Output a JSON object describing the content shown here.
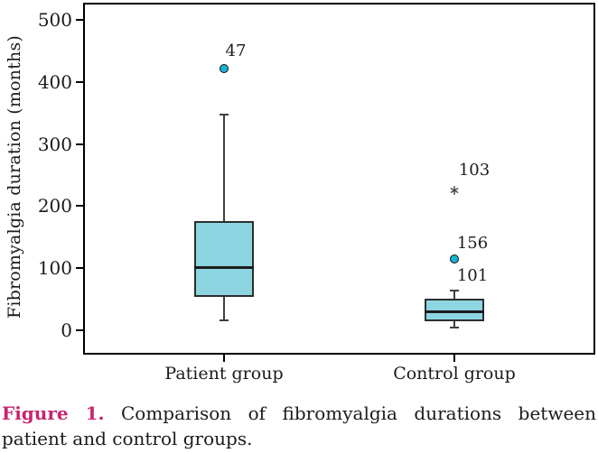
{
  "figure": {
    "caption": {
      "label": "Figure 1.",
      "line1": "Comparison of fibromyalgia durations between",
      "line2": "patient and control groups."
    }
  },
  "colors": {
    "box_fill": "#8ed5e2",
    "box_border": "#2e2e2e",
    "marker_fill": "#17b3d3",
    "asterisk": "#4a4a4a",
    "caption_accent": "#c8246f",
    "text": "#1b1b1b"
  },
  "chart_data": {
    "type": "boxplot",
    "title": "",
    "xlabel": "",
    "ylabel": "Fibromyalgia duration (months)",
    "ylim": [
      0,
      500
    ],
    "yticks": [
      0,
      100,
      200,
      300,
      400,
      500
    ],
    "grid": false,
    "groups": [
      {
        "label": "Patient group",
        "whisker_low": 16,
        "q1": 54,
        "median": 102,
        "q3": 176,
        "whisker_high": 347,
        "outliers": [
          {
            "case": "47",
            "value": 421,
            "symbol": "circle",
            "label_dx": 13,
            "label_dy": -19
          }
        ]
      },
      {
        "label": "Control group",
        "whisker_low": 5,
        "q1": 15,
        "median": 30,
        "q3": 51,
        "whisker_high": 64,
        "outliers": [
          {
            "case": "103",
            "value": 233,
            "symbol": "asterisk",
            "label_dx": 22,
            "label_dy": -17
          },
          {
            "case": "156",
            "value": 115,
            "symbol": "circle",
            "label_dx": 20,
            "label_dy": -17
          },
          {
            "case": "101",
            "value": 115,
            "symbol": "none",
            "label_dx": 20,
            "label_dy": 19
          }
        ]
      }
    ]
  }
}
